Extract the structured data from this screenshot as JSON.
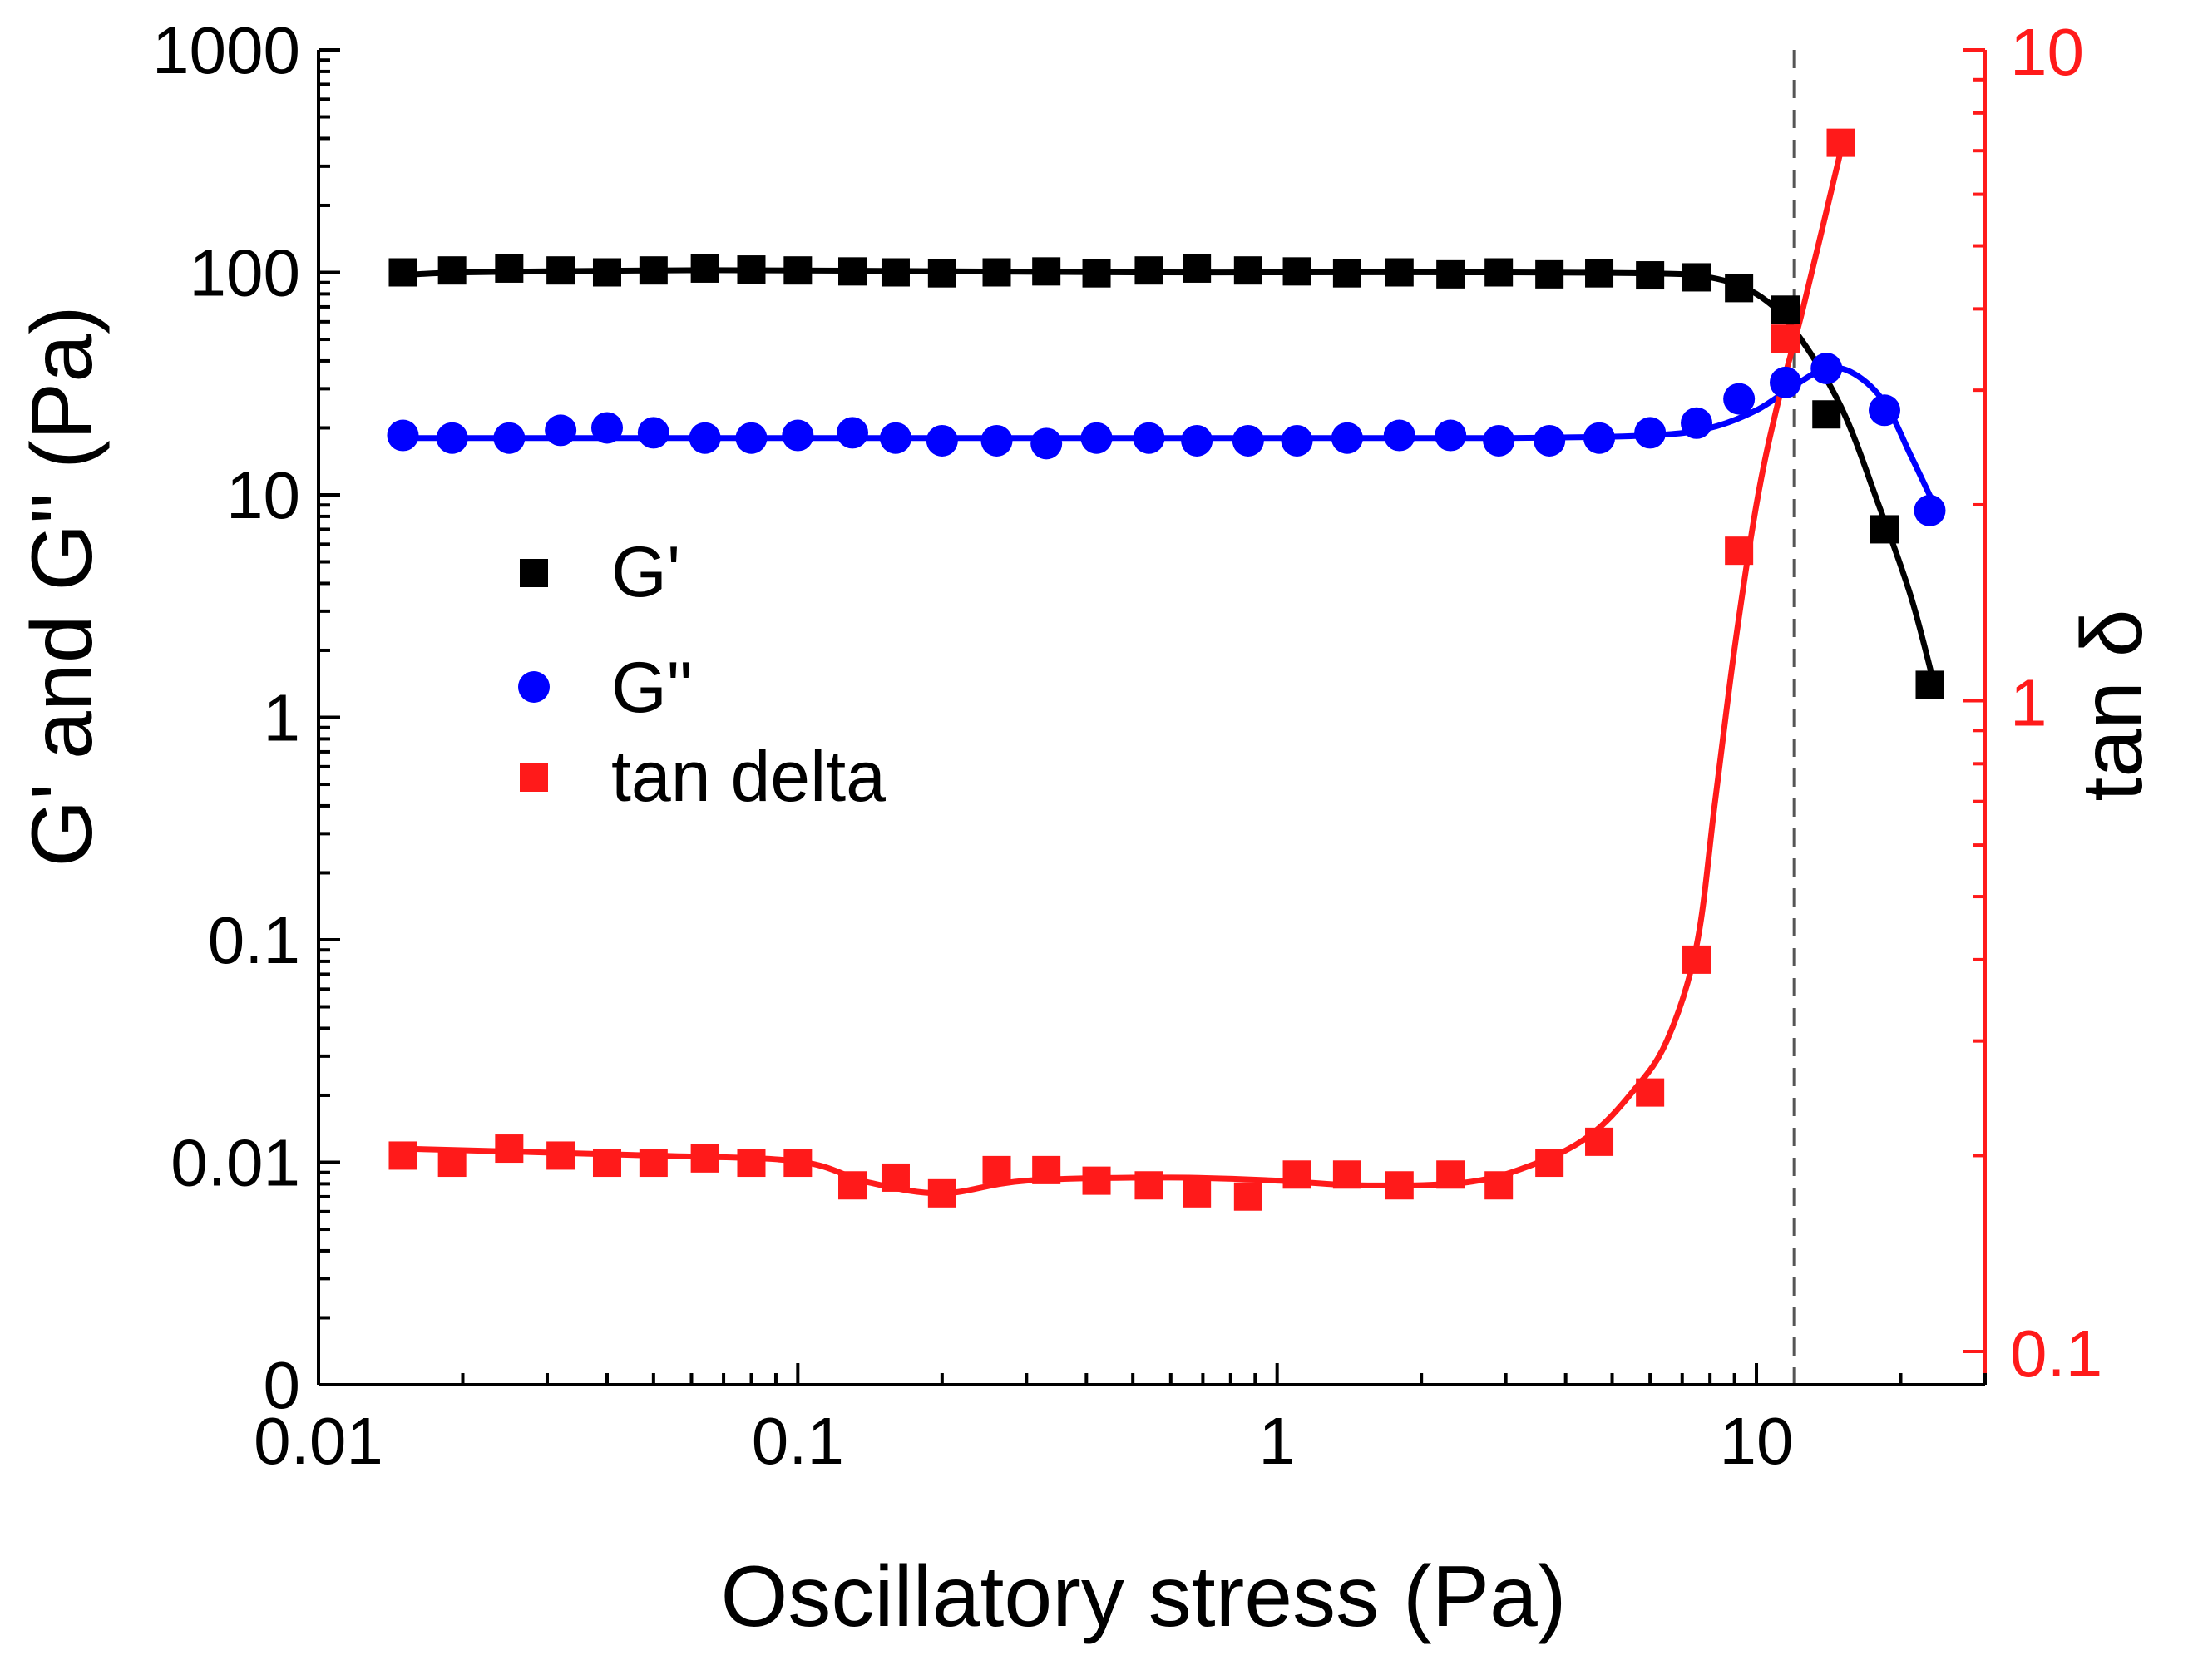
{
  "chart_data": {
    "type": "scatter",
    "title": "",
    "xlabel": "Oscillatory stress (Pa)",
    "ylabel_left": "G' and G\" (Pa)",
    "ylabel_right": "tan δ",
    "xscale": "log",
    "xlim": [
      0.01,
      30
    ],
    "ylim_left": [
      0.001,
      1000
    ],
    "ylim_right": [
      0.1,
      10
    ],
    "left_bottom_tick_label": "0",
    "x_ticks": [
      {
        "value": 0.01,
        "label": "0.01"
      },
      {
        "value": 0.1,
        "label": "0.1"
      },
      {
        "value": 1,
        "label": "1"
      },
      {
        "value": 10,
        "label": "10"
      }
    ],
    "y_left_ticks": [
      {
        "value": 0.001,
        "label": "0"
      },
      {
        "value": 0.01,
        "label": "0.01"
      },
      {
        "value": 0.1,
        "label": "0.1"
      },
      {
        "value": 1,
        "label": "1"
      },
      {
        "value": 10,
        "label": "10"
      },
      {
        "value": 100,
        "label": "100"
      },
      {
        "value": 1000,
        "label": "1000"
      }
    ],
    "y_right_ticks": [
      {
        "value": 0.1,
        "label": "0.1"
      },
      {
        "value": 1,
        "label": "1"
      },
      {
        "value": 10,
        "label": "10"
      }
    ],
    "vline_x": 12,
    "legend_position": "center-left",
    "colors": {
      "axis": "#000000",
      "right_axis": "#ff1a1a",
      "g_prime": "#000000",
      "g_double_prime": "#0000ff",
      "tan_delta": "#ff1a1a",
      "vline": "#555555"
    },
    "series": [
      {
        "name": "G'",
        "marker": "square",
        "axis": "left",
        "x": [
          0.015,
          0.019,
          0.025,
          0.032,
          0.04,
          0.05,
          0.064,
          0.08,
          0.1,
          0.13,
          0.16,
          0.2,
          0.26,
          0.33,
          0.42,
          0.54,
          0.68,
          0.87,
          1.1,
          1.4,
          1.8,
          2.3,
          2.9,
          3.7,
          4.7,
          6.0,
          7.5,
          9.2,
          11.5,
          14.0,
          18.5,
          23.0
        ],
        "y": [
          100,
          102,
          104,
          102,
          100,
          102,
          104,
          103,
          102,
          101,
          100,
          99,
          100,
          101,
          99,
          102,
          104,
          102,
          101,
          99,
          100,
          98,
          100,
          98,
          99,
          97,
          95,
          85,
          68,
          23,
          7,
          1.4
        ],
        "fit": {
          "x": [
            0.015,
            0.02,
            0.05,
            0.1,
            0.5,
            1,
            3,
            6,
            8,
            10,
            12,
            15,
            18,
            21,
            23.5
          ],
          "y": [
            97,
            100,
            102,
            102,
            100,
            100,
            100,
            99,
            95,
            80,
            55,
            25,
            9,
            3.5,
            1.4
          ]
        }
      },
      {
        "name": "G\"",
        "marker": "circle",
        "axis": "left",
        "x": [
          0.015,
          0.019,
          0.025,
          0.032,
          0.04,
          0.05,
          0.064,
          0.08,
          0.1,
          0.13,
          0.16,
          0.2,
          0.26,
          0.33,
          0.42,
          0.54,
          0.68,
          0.87,
          1.1,
          1.4,
          1.8,
          2.3,
          2.9,
          3.7,
          4.7,
          6.0,
          7.5,
          9.2,
          11.5,
          14.0,
          18.5,
          23.0
        ],
        "y": [
          18.5,
          18,
          18,
          19.5,
          20,
          19,
          18,
          18,
          18.5,
          19,
          18,
          17.5,
          17.5,
          17,
          18,
          18,
          17.5,
          17.5,
          17.5,
          18,
          18.5,
          18.5,
          17.5,
          17.5,
          18,
          19,
          21,
          27,
          32,
          37,
          24,
          8.5
        ],
        "fit": {
          "x": [
            0.015,
            0.05,
            0.2,
            1,
            3,
            6,
            8,
            10,
            12,
            14,
            16,
            18.5,
            21,
            23.5
          ],
          "y": [
            18,
            18,
            18,
            18,
            18,
            18.5,
            20,
            24,
            31,
            37,
            35,
            26,
            15,
            9
          ]
        }
      },
      {
        "name": "tan delta",
        "marker": "square",
        "axis": "right",
        "x": [
          0.015,
          0.019,
          0.025,
          0.032,
          0.04,
          0.05,
          0.064,
          0.08,
          0.1,
          0.13,
          0.16,
          0.2,
          0.26,
          0.33,
          0.42,
          0.54,
          0.68,
          0.87,
          1.1,
          1.4,
          1.8,
          2.3,
          2.9,
          3.7,
          4.7,
          6.0,
          7.5,
          9.2,
          11.5,
          15.0
        ],
        "y": [
          0.2,
          0.195,
          0.205,
          0.2,
          0.195,
          0.195,
          0.198,
          0.195,
          0.195,
          0.18,
          0.185,
          0.175,
          0.19,
          0.19,
          0.183,
          0.18,
          0.175,
          0.173,
          0.187,
          0.187,
          0.18,
          0.187,
          0.18,
          0.195,
          0.21,
          0.25,
          0.4,
          1.7,
          3.6,
          7.2
        ],
        "fit": {
          "x": [
            0.015,
            0.05,
            0.1,
            0.14,
            0.2,
            0.3,
            0.6,
            1,
            1.5,
            2.5,
            3.5,
            4.5,
            5.5,
            6.5,
            7.5,
            8.2,
            9,
            10,
            11,
            12.5,
            15.0
          ],
          "y": [
            0.205,
            0.2,
            0.196,
            0.182,
            0.175,
            0.183,
            0.185,
            0.183,
            0.18,
            0.182,
            0.195,
            0.215,
            0.25,
            0.3,
            0.42,
            0.7,
            1.2,
            2.0,
            2.8,
            4.0,
            7.0
          ]
        }
      }
    ]
  }
}
